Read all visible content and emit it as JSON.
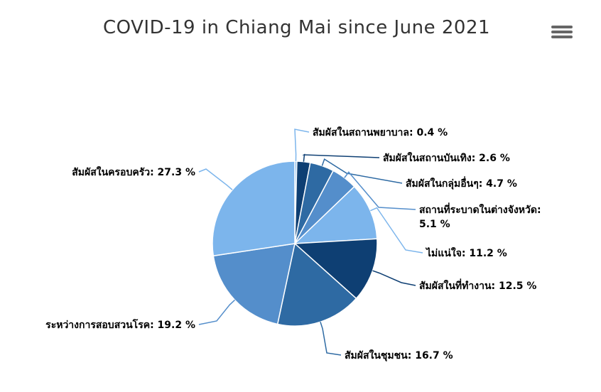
{
  "title": "COVID-19 in Chiang Mai since June 2021",
  "menu_icon": "hamburger-menu-icon",
  "chart_data": {
    "type": "pie",
    "title": "COVID-19 in Chiang Mai since June 2021",
    "unit": "%",
    "slices": [
      {
        "label": "สัมผัสในสถานพยาบาล",
        "value": 0.4,
        "display": "สัมผัสในสถานพยาบาล: 0.4 %",
        "color": "#7cb5ec"
      },
      {
        "label": "สัมผัสในสถานบันเทิง",
        "value": 2.6,
        "display": "สัมผัสในสถานบันเทิง: 2.6 %",
        "color": "#0e3f73"
      },
      {
        "label": "สัมผัสในกลุ่มอื่นๆ",
        "value": 4.7,
        "display": "สัมผัสในกลุ่มอื่นๆ: 4.7 %",
        "color": "#2e6aa3"
      },
      {
        "label": "สถานที่ระบาดในต่างจังหวัด",
        "value": 5.1,
        "display_lines": [
          "สถานที่ระบาดในต่างจังหวัด:",
          "5.1 %"
        ],
        "color": "#548ecb"
      },
      {
        "label": "ไม่แน่ใจ",
        "value": 11.2,
        "display": "ไม่แน่ใจ: 11.2 %",
        "color": "#7cb5ec"
      },
      {
        "label": "สัมผัสในที่ทำงาน",
        "value": 12.5,
        "display": "สัมผัสในที่ทำงาน: 12.5 %",
        "color": "#0e3f73"
      },
      {
        "label": "สัมผัสในชุมชน",
        "value": 16.7,
        "display": "สัมผัสในชุมชน: 16.7 %",
        "color": "#2e6aa3"
      },
      {
        "label": "ระหว่างการสอบสวนโรค",
        "value": 19.2,
        "display": "ระหว่างการสอบสวนโรค: 19.2 %",
        "color": "#548ecb"
      },
      {
        "label": "สัมผัสในครอบครัว",
        "value": 27.3,
        "display": "สัมผัสในครอบครัว: 27.3 %",
        "color": "#7cb5ec"
      }
    ]
  }
}
